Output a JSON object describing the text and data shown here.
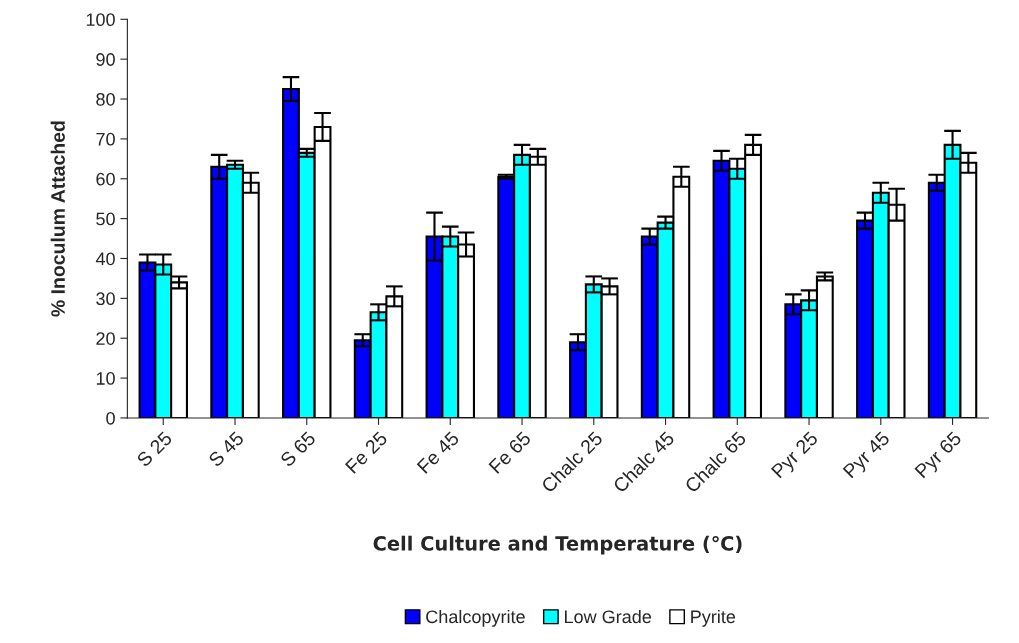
{
  "chart_data": {
    "type": "bar",
    "xlabel": "Cell Culture and Temperature (℃)",
    "ylabel": "% Inoculum Attached",
    "categories": [
      "S 25",
      "S 45",
      "S 65",
      "Fe 25",
      "Fe 45",
      "Fe 65",
      "Chalc 25",
      "Chalc 45",
      "Chalc 65",
      "Pyr 25",
      "Pyr 45",
      "Pyr 65"
    ],
    "series": [
      {
        "name": "Chalcopyrite",
        "color": "#0000ff",
        "values": [
          39,
          63,
          82.5,
          19.5,
          45.5,
          60.5,
          19,
          45.5,
          64.5,
          28.5,
          49.5,
          59
        ],
        "errors": [
          2,
          3,
          3,
          1.5,
          6,
          0.5,
          2,
          2,
          2.5,
          2.5,
          2,
          2
        ]
      },
      {
        "name": "Low Grade",
        "color": "#00ffff",
        "values": [
          38.5,
          63.5,
          66.5,
          26.5,
          45.5,
          66,
          33.5,
          49,
          62.5,
          29.5,
          56.5,
          68.5
        ],
        "errors": [
          2.5,
          1,
          1,
          2,
          2.5,
          2.5,
          2,
          1.5,
          2.5,
          2.5,
          2.5,
          3.5
        ]
      },
      {
        "name": "Pyrite",
        "color": "#ffffff",
        "values": [
          34,
          59,
          73,
          30.5,
          43.5,
          65.5,
          33,
          60.5,
          68.5,
          35.5,
          53.5,
          64
        ],
        "errors": [
          1.5,
          2.5,
          3.5,
          2.5,
          3,
          2,
          2,
          2.5,
          2.5,
          1,
          4,
          2.5
        ]
      }
    ],
    "ylim": [
      0,
      100
    ],
    "yticks": [
      0,
      10,
      20,
      30,
      40,
      50,
      60,
      70,
      80,
      90,
      100
    ],
    "grid": false,
    "legend": "bottom"
  }
}
